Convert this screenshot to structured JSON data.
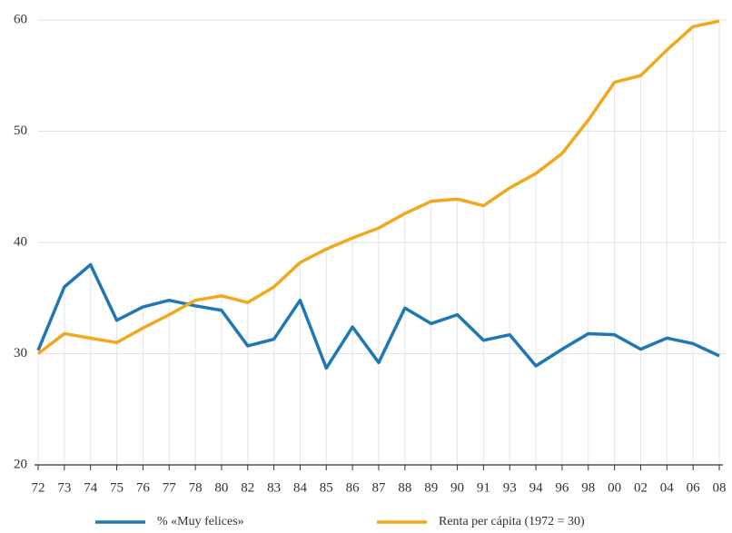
{
  "chart_data": {
    "type": "line",
    "categories": [
      "72",
      "73",
      "74",
      "75",
      "76",
      "77",
      "78",
      "80",
      "82",
      "83",
      "84",
      "85",
      "86",
      "87",
      "88",
      "89",
      "90",
      "91",
      "93",
      "94",
      "96",
      "98",
      "00",
      "02",
      "04",
      "06",
      "08"
    ],
    "series": [
      {
        "name": "% «Muy felices»",
        "color": "#1f77b4",
        "values": [
          30.3,
          36,
          38,
          33,
          34.2,
          34.8,
          34.3,
          33.9,
          30.7,
          31.3,
          34.8,
          28.7,
          32.4,
          29.2,
          34.1,
          32.7,
          33.5,
          31.2,
          31.7,
          28.9,
          30.4,
          31.8,
          31.7,
          30.4,
          31.4,
          30.9,
          29.8
        ]
      },
      {
        "name": "Renta per cápita (1972 = 30)",
        "color": "#f0a81c",
        "values": [
          30,
          31.8,
          31.4,
          31.0,
          32.3,
          33.5,
          34.8,
          35.2,
          34.6,
          36,
          38.2,
          39.4,
          40.4,
          41.3,
          42.6,
          43.7,
          43.9,
          43.3,
          44.9,
          46.2,
          48,
          51,
          54.4,
          55,
          57.3,
          59.4,
          59.9
        ]
      }
    ],
    "ylim": [
      20,
      60
    ],
    "yticks": [
      20,
      30,
      40,
      50,
      60
    ],
    "grid": true
  }
}
